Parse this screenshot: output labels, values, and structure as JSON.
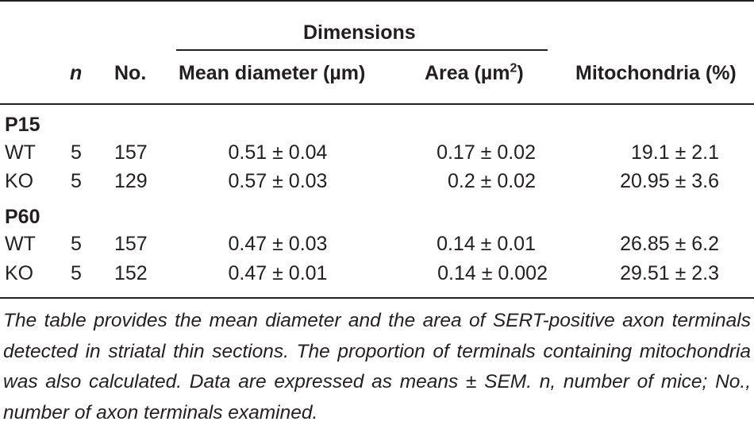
{
  "table": {
    "group_header": "Dimensions",
    "columns": {
      "n": "n",
      "no": "No.",
      "mean_diameter": "Mean diameter (µm)",
      "area_prefix": "Area (µm",
      "area_sup": "2",
      "area_suffix": ")",
      "mitochondria": "Mitochondria (%)"
    },
    "groups": [
      {
        "label": "P15",
        "rows": [
          {
            "genotype": "WT",
            "n": "5",
            "no": "157",
            "mean_diameter": "0.51 ± 0.04",
            "area": "0.17 ± 0.02",
            "mitochondria": "19.1 ± 2.1"
          },
          {
            "genotype": "KO",
            "n": "5",
            "no": "129",
            "mean_diameter": "0.57 ± 0.03",
            "area": "0.2 ± 0.02",
            "mitochondria": "20.95 ± 3.6"
          }
        ]
      },
      {
        "label": "P60",
        "rows": [
          {
            "genotype": "WT",
            "n": "5",
            "no": "157",
            "mean_diameter": "0.47 ± 0.03",
            "area": "0.14 ± 0.01",
            "mitochondria": "26.85 ± 6.2"
          },
          {
            "genotype": "KO",
            "n": "5",
            "no": "152",
            "mean_diameter": "0.47 ± 0.01",
            "area": "0.14 ± 0.002",
            "mitochondria": "29.51 ± 2.3"
          }
        ]
      }
    ]
  },
  "caption": "The table provides the mean diameter and the area of SERT-positive axon terminals detected in striatal thin sections. The proportion of terminals containing mitochondria was also calculated. Data are expressed as means ± SEM. n, number of mice; No., number of axon terminals examined."
}
